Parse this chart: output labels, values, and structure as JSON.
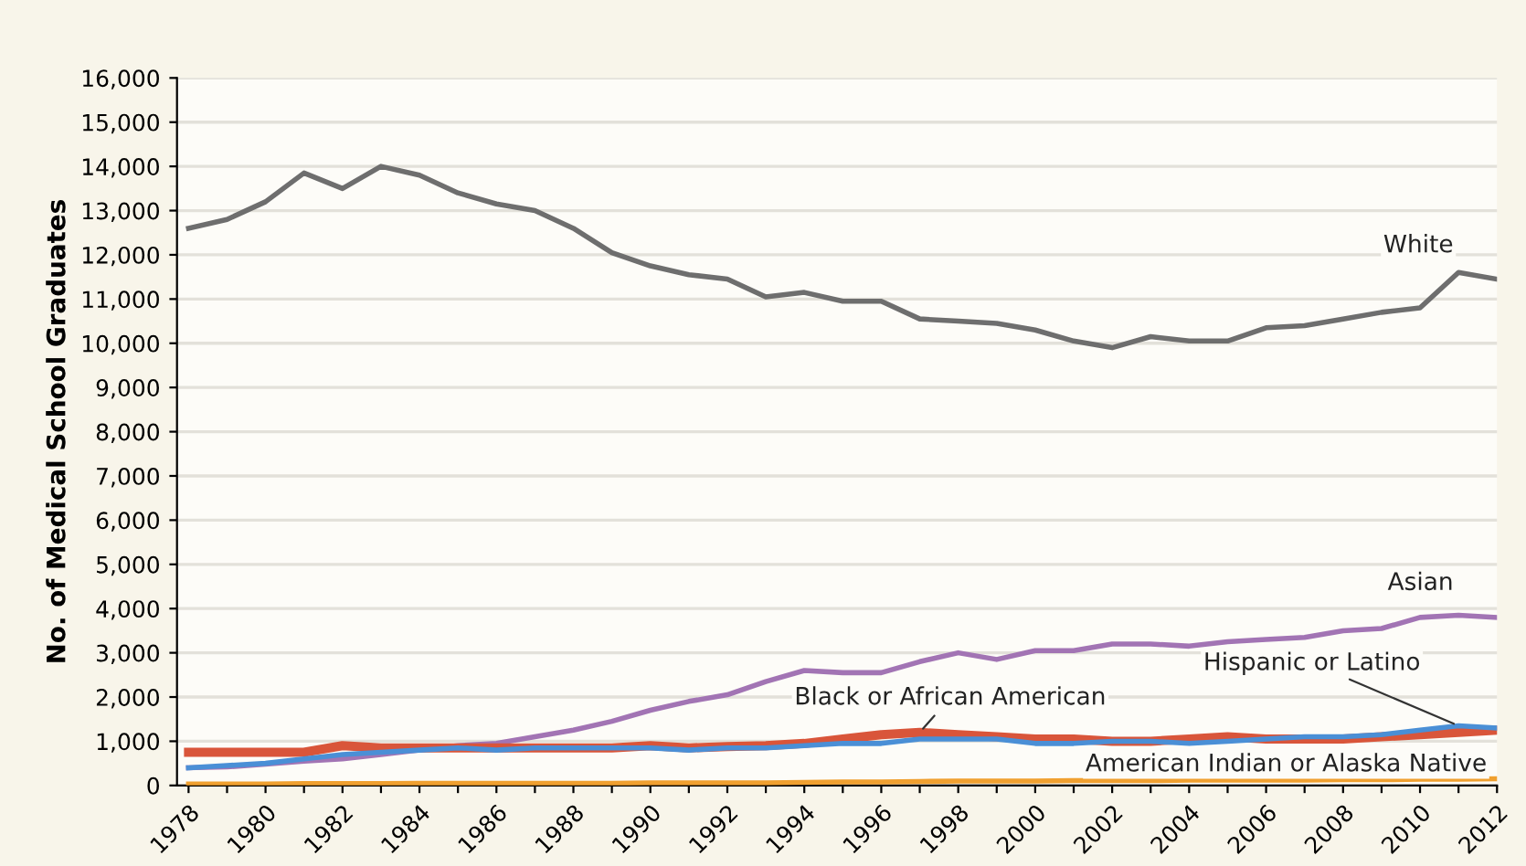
{
  "chart_data": {
    "type": "line",
    "ylabel": "No. of Medical School Graduates",
    "x": [
      1978,
      1979,
      1980,
      1981,
      1982,
      1983,
      1984,
      1985,
      1986,
      1987,
      1988,
      1989,
      1990,
      1991,
      1992,
      1993,
      1994,
      1995,
      1996,
      1997,
      1998,
      1999,
      2000,
      2001,
      2002,
      2003,
      2004,
      2005,
      2006,
      2007,
      2008,
      2009,
      2010,
      2011,
      2012
    ],
    "series": [
      {
        "name": "White",
        "color": "#6e6e6e",
        "values": [
          12600,
          12800,
          13200,
          13850,
          13500,
          14000,
          13800,
          13400,
          13150,
          13000,
          12600,
          12050,
          11750,
          11550,
          11450,
          11050,
          11150,
          10950,
          10950,
          10550,
          10500,
          10450,
          10300,
          10050,
          9900,
          10150,
          10050,
          10050,
          10350,
          10400,
          10550,
          10700,
          10800,
          11600,
          11450
        ]
      },
      {
        "name": "Asian",
        "color": "#a274b4",
        "values": [
          400,
          420,
          480,
          550,
          600,
          700,
          800,
          900,
          950,
          1100,
          1250,
          1450,
          1700,
          1900,
          2050,
          2350,
          2600,
          2550,
          2550,
          2800,
          3000,
          2850,
          3050,
          3050,
          3200,
          3200,
          3150,
          3250,
          3300,
          3350,
          3500,
          3550,
          3800,
          3850,
          3800
        ]
      },
      {
        "name": "Black or African American",
        "color": "#d9553a",
        "values": [
          750,
          750,
          750,
          750,
          900,
          850,
          850,
          850,
          850,
          850,
          850,
          850,
          900,
          850,
          880,
          900,
          950,
          1050,
          1150,
          1200,
          1150,
          1100,
          1050,
          1050,
          1000,
          1000,
          1050,
          1100,
          1050,
          1050,
          1050,
          1100,
          1150,
          1200,
          1250
        ]
      },
      {
        "name": "Hispanic or Latino",
        "color": "#4a8fd6",
        "values": [
          400,
          450,
          500,
          600,
          700,
          750,
          800,
          850,
          800,
          850,
          850,
          850,
          850,
          800,
          850,
          850,
          900,
          950,
          950,
          1050,
          1050,
          1050,
          950,
          950,
          1000,
          1000,
          950,
          1000,
          1050,
          1100,
          1100,
          1150,
          1250,
          1350,
          1300
        ]
      },
      {
        "name": "American Indian or Alaska Native",
        "color": "#f0a030",
        "values": [
          30,
          30,
          30,
          40,
          40,
          40,
          50,
          50,
          50,
          50,
          50,
          50,
          60,
          60,
          60,
          60,
          70,
          80,
          80,
          90,
          100,
          100,
          100,
          110,
          110,
          110,
          120,
          120,
          120,
          120,
          130,
          130,
          140,
          140,
          150
        ]
      }
    ],
    "xlim": [
      1977.7,
      2012
    ],
    "xticks": [
      1978,
      {
        "value": 1979,
        "label": null
      },
      1980,
      {
        "value": 1981,
        "label": null
      },
      1982,
      {
        "value": 1983,
        "label": null
      },
      1984,
      {
        "value": 1985,
        "label": null
      },
      1986,
      {
        "value": 1987,
        "label": null
      },
      1988,
      {
        "value": 1989,
        "label": null
      },
      1990,
      {
        "value": 1991,
        "label": null
      },
      1992,
      {
        "value": 1993,
        "label": null
      },
      1994,
      {
        "value": 1995,
        "label": null
      },
      1996,
      {
        "value": 1997,
        "label": null
      },
      1998,
      {
        "value": 1999,
        "label": null
      },
      2000,
      {
        "value": 2001,
        "label": null
      },
      2002,
      {
        "value": 2003,
        "label": null
      },
      2004,
      {
        "value": 2005,
        "label": null
      },
      2006,
      {
        "value": 2007,
        "label": null
      },
      2008,
      {
        "value": 2009,
        "label": null
      },
      2010,
      {
        "value": 2011,
        "label": null
      },
      2012
    ],
    "ylim": [
      0,
      16000
    ],
    "yticks": [
      {
        "value": 0,
        "label": "0"
      },
      {
        "value": 1000,
        "label": "1,000"
      },
      {
        "value": 2000,
        "label": "2,000"
      },
      {
        "value": 3000,
        "label": "3,000"
      },
      {
        "value": 4000,
        "label": "4,000"
      },
      {
        "value": 5000,
        "label": "5,000"
      },
      {
        "value": 6000,
        "label": "6,000"
      },
      {
        "value": 7000,
        "label": "7,000"
      },
      {
        "value": 8000,
        "label": "8,000"
      },
      {
        "value": 9000,
        "label": "9,000"
      },
      {
        "value": 10000,
        "label": "10,000"
      },
      {
        "value": 11000,
        "label": "11,000"
      },
      {
        "value": 12000,
        "label": "12,000"
      },
      {
        "value": 13000,
        "label": "13,000"
      },
      {
        "value": 14000,
        "label": "14,000"
      },
      {
        "value": 15000,
        "label": "15,000"
      },
      {
        "value": 16000,
        "label": "16,000"
      }
    ],
    "grid": "y",
    "legend": false,
    "marker": "none",
    "line_style": "solid"
  }
}
